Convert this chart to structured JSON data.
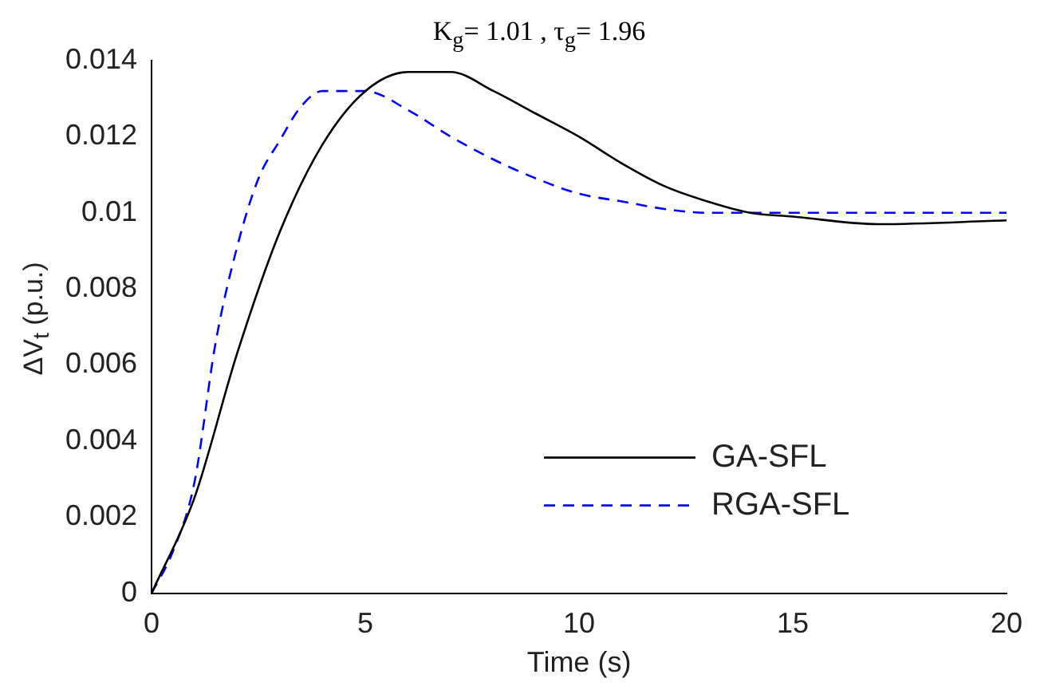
{
  "chart_data": {
    "type": "line",
    "title": "K$_{g}$= 1.01 , τ$_{g}$= 1.96",
    "xlabel": "Time (s)",
    "ylabel": "ΔV$_{t}$ (p.u.)",
    "xlim": [
      0,
      20
    ],
    "xticks": [
      0,
      5,
      10,
      15,
      20
    ],
    "ylim": [
      0,
      0.014
    ],
    "yticks": [
      0,
      0.002,
      0.004,
      0.006,
      0.008,
      0.01,
      0.012,
      0.014
    ],
    "grid": false,
    "legend": "bottom right",
    "marker": "none",
    "series": [
      {
        "name": "GA-SFL",
        "color": "#000000",
        "line_style": "solid",
        "x": [
          0,
          1,
          2,
          3,
          4,
          5,
          6,
          6.5,
          7,
          8,
          9,
          10,
          11,
          12,
          13,
          14,
          15,
          17,
          20
        ],
        "values": [
          0,
          0.0025,
          0.0063,
          0.0095,
          0.0118,
          0.0132,
          0.0137,
          0.0137,
          0.0137,
          0.0132,
          0.0126,
          0.012,
          0.0113,
          0.0107,
          0.0103,
          0.01,
          0.0099,
          0.0097,
          0.0098
        ]
      },
      {
        "name": "RGA-SFL",
        "color": "#0000ff",
        "line_style": "dashed",
        "x": [
          0,
          0.5,
          1,
          1.5,
          2,
          2.5,
          3,
          3.5,
          4,
          4.5,
          5,
          6,
          7,
          8,
          9,
          10,
          11,
          12,
          13,
          15,
          20
        ],
        "values": [
          0,
          0.0011,
          0.0029,
          0.0066,
          0.0091,
          0.0109,
          0.0119,
          0.0128,
          0.0132,
          0.0132,
          0.0132,
          0.0127,
          0.012,
          0.0114,
          0.0109,
          0.0105,
          0.0103,
          0.0101,
          0.01,
          0.01,
          0.01
        ]
      }
    ]
  }
}
